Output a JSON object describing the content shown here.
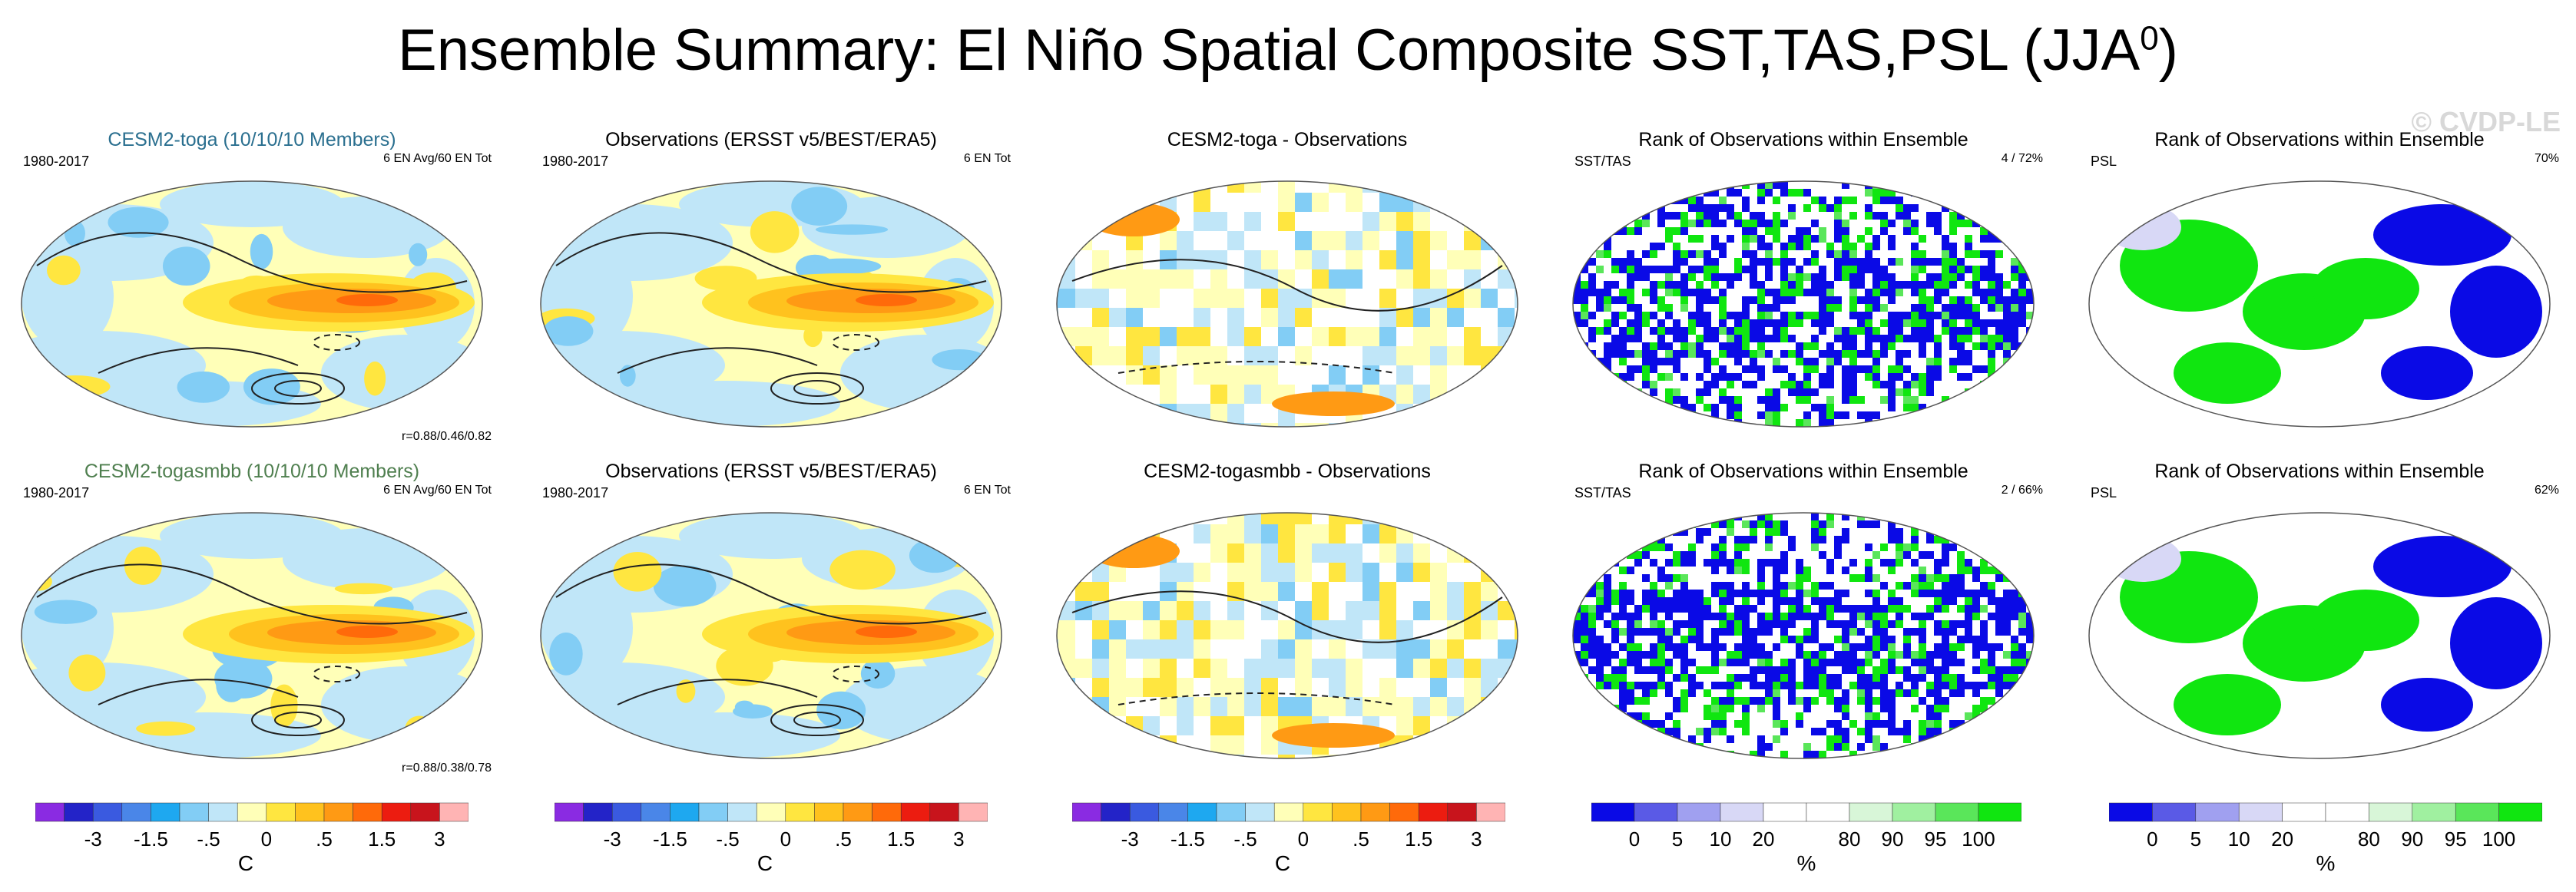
{
  "title": "Ensemble Summary: El Niño Spatial Composite SST,TAS,PSL (JJA",
  "title_sup": "0",
  "title_close": ")",
  "watermark": "© CVDP-LE",
  "panels": [
    {
      "title": "CESM2-toga (10/10/10 Members)",
      "title_color": "#2a6f8f",
      "top_left": "1980-2017",
      "top_right": "6 EN Avg/60 EN Tot",
      "bottom_right": "r=0.88/0.46/0.82",
      "kind": "anom"
    },
    {
      "title": "Observations (ERSST v5/BEST/ERA5)",
      "title_color": "#000000",
      "top_left": "1980-2017",
      "top_right": "6 EN Tot",
      "bottom_right": "",
      "kind": "anom"
    },
    {
      "title": "CESM2-toga - Observations",
      "title_color": "#000000",
      "top_left": "",
      "top_right": "",
      "bottom_right": "",
      "kind": "diff"
    },
    {
      "title": "Rank of Observations within Ensemble",
      "title_color": "#000000",
      "top_left": "SST/TAS",
      "top_right": "4 /  72%",
      "bottom_right": "",
      "kind": "rank"
    },
    {
      "title": "Rank of Observations within Ensemble",
      "title_color": "#000000",
      "top_left": "PSL",
      "top_right": "70%",
      "bottom_right": "",
      "kind": "rankpsl"
    },
    {
      "title": "CESM2-togasmbb (10/10/10 Members)",
      "title_color": "#4f7f4f",
      "top_left": "1980-2017",
      "top_right": "6 EN Avg/60 EN Tot",
      "bottom_right": "r=0.88/0.38/0.78",
      "kind": "anom"
    },
    {
      "title": "Observations (ERSST v5/BEST/ERA5)",
      "title_color": "#000000",
      "top_left": "1980-2017",
      "top_right": "6 EN Tot",
      "bottom_right": "",
      "kind": "anom"
    },
    {
      "title": "CESM2-togasmbb - Observations",
      "title_color": "#000000",
      "top_left": "",
      "top_right": "",
      "bottom_right": "",
      "kind": "diff"
    },
    {
      "title": "Rank of Observations within Ensemble",
      "title_color": "#000000",
      "top_left": "SST/TAS",
      "top_right": "2 /  66%",
      "bottom_right": "",
      "kind": "rank"
    },
    {
      "title": "Rank of Observations within Ensemble",
      "title_color": "#000000",
      "top_left": "PSL",
      "top_right": "62%",
      "bottom_right": "",
      "kind": "rankpsl"
    }
  ],
  "anom_colorbar": {
    "unit": "C",
    "colors": [
      "#8a2be2",
      "#2323c8",
      "#3a5ae0",
      "#4a86e8",
      "#1ea8f0",
      "#82cdf5",
      "#c0e6f8",
      "#ffffb8",
      "#ffe640",
      "#ffc21e",
      "#ff9a14",
      "#ff6a0a",
      "#ec1c10",
      "#c8141c",
      "#ffb4b4"
    ],
    "labels": [
      "-3",
      "-1.5",
      "-.5",
      "0",
      ".5",
      "1.5",
      "3"
    ],
    "label_boundaries": [
      2,
      4,
      6,
      8,
      10,
      12,
      14
    ]
  },
  "rank_colorbar": {
    "unit": "%",
    "colors": [
      "#0a0ae6",
      "#5a5ae6",
      "#a0a0f0",
      "#d8d8f6",
      "#ffffff",
      "#ffffff",
      "#d8f6d8",
      "#a0f0a0",
      "#5ae65a",
      "#10e610"
    ],
    "labels": [
      "0",
      "5",
      "10",
      "20",
      "80",
      "90",
      "95",
      "100"
    ],
    "label_boundaries": [
      1,
      2,
      3,
      4,
      6,
      7,
      8,
      9
    ]
  },
  "chart_data": [
    {
      "type": "heatmap",
      "title": "CESM2-toga (10/10/10 Members)",
      "variable": "SST/TAS anomaly with PSL contours",
      "period": "1980-2017",
      "units": "C",
      "levels": [
        -3,
        -1.5,
        -0.5,
        0,
        0.5,
        1.5,
        3
      ],
      "pattern_correlation": [
        0.88,
        0.46,
        0.82
      ]
    },
    {
      "type": "heatmap",
      "title": "Observations (ERSST v5/BEST/ERA5)",
      "period": "1980-2017",
      "units": "C"
    },
    {
      "type": "heatmap",
      "title": "CESM2-toga - Observations",
      "units": "C"
    },
    {
      "type": "heatmap",
      "title": "Rank of Observations within Ensemble",
      "field": "SST/TAS",
      "units": "%",
      "levels": [
        0,
        5,
        10,
        20,
        80,
        90,
        95,
        100
      ],
      "annotation": "4 / 72%"
    },
    {
      "type": "heatmap",
      "title": "Rank of Observations within Ensemble",
      "field": "PSL",
      "units": "%",
      "annotation": "70%"
    },
    {
      "type": "heatmap",
      "title": "CESM2-togasmbb (10/10/10 Members)",
      "period": "1980-2017",
      "units": "C",
      "pattern_correlation": [
        0.88,
        0.38,
        0.78
      ]
    },
    {
      "type": "heatmap",
      "title": "Observations (ERSST v5/BEST/ERA5)",
      "period": "1980-2017",
      "units": "C"
    },
    {
      "type": "heatmap",
      "title": "CESM2-togasmbb - Observations",
      "units": "C"
    },
    {
      "type": "heatmap",
      "title": "Rank of Observations within Ensemble",
      "field": "SST/TAS",
      "units": "%",
      "annotation": "2 / 66%"
    },
    {
      "type": "heatmap",
      "title": "Rank of Observations within Ensemble",
      "field": "PSL",
      "units": "%",
      "annotation": "62%"
    }
  ]
}
